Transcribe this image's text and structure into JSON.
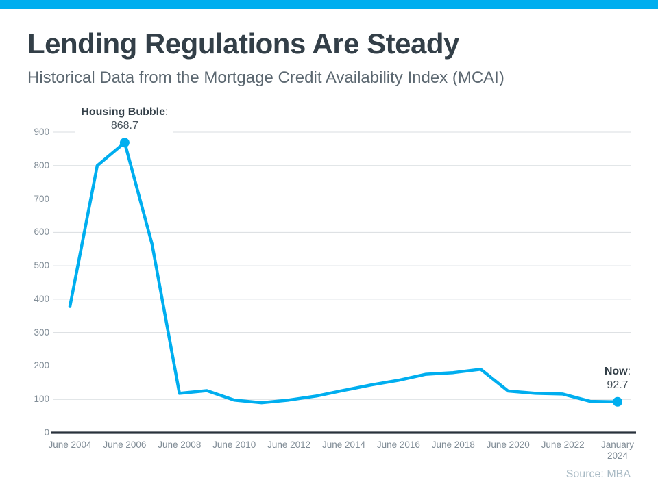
{
  "header": {
    "title": "Lending Regulations Are Steady",
    "subtitle": "Historical Data from the Mortgage Credit Availability Index (MCAI)"
  },
  "footer": {
    "source": "Source: MBA"
  },
  "theme": {
    "accent_bar_color": "#00AEEF",
    "title_color": "#333F48",
    "subtitle_color": "#5B6770",
    "source_color": "#A9BAC4"
  },
  "chart_data": {
    "type": "line",
    "title": "",
    "xlabel": "",
    "ylabel": "",
    "ylim": [
      0,
      900
    ],
    "grid": "horizontal",
    "legend": "none",
    "colors": {
      "line": "#00AEEF",
      "marker": "#00AEEF",
      "grid": "#D9DDE1",
      "axis": "#29323C",
      "tick_label": "#808C96"
    },
    "y_ticks": [
      0,
      100,
      200,
      300,
      400,
      500,
      600,
      700,
      800,
      900
    ],
    "x_axis_ticks": [
      "June 2004",
      "June 2006",
      "June 2008",
      "June 2010",
      "June 2012",
      "June 2014",
      "June 2016",
      "June 2018",
      "June 2020",
      "June 2022",
      "January\n2024"
    ],
    "series": [
      {
        "name": "Mortgage Credit Availability Index",
        "color": "#00AEEF",
        "x": [
          "June 2004",
          "June 2005",
          "June 2006",
          "June 2007",
          "June 2008",
          "June 2009",
          "June 2010",
          "June 2011",
          "June 2012",
          "June 2013",
          "June 2014",
          "June 2015",
          "June 2016",
          "June 2017",
          "June 2018",
          "June 2019",
          "June 2020",
          "June 2021",
          "June 2022",
          "June 2023",
          "January 2024"
        ],
        "values": [
          378,
          800,
          868.7,
          565,
          118,
          126,
          98,
          90,
          98,
          110,
          127,
          143,
          157,
          175,
          180,
          190,
          125,
          118,
          116,
          94,
          92.7
        ]
      }
    ],
    "annotations": [
      {
        "name": "housing-bubble",
        "label": "Housing Bubble",
        "sep": ":",
        "value": "868.7",
        "point_index": 2
      },
      {
        "name": "now",
        "label": "Now",
        "sep": ":",
        "value": "92.7",
        "point_index": 20
      }
    ]
  }
}
